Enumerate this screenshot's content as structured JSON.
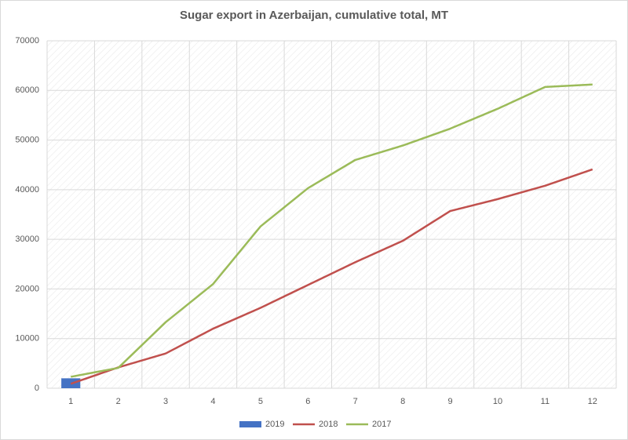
{
  "chart_data": {
    "type": "line",
    "title": "Sugar export in Azerbaijan, cumulative total, MT",
    "categories": [
      "1",
      "2",
      "3",
      "4",
      "5",
      "6",
      "7",
      "8",
      "9",
      "10",
      "11",
      "12"
    ],
    "series": [
      {
        "name": "2019",
        "type": "bar",
        "color": "#4472c4",
        "values": [
          2000,
          null,
          null,
          null,
          null,
          null,
          null,
          null,
          null,
          null,
          null,
          null
        ]
      },
      {
        "name": "2018",
        "type": "line",
        "color": "#c0504d",
        "values": [
          900,
          4200,
          7000,
          12000,
          16200,
          20800,
          25400,
          29700,
          35700,
          38100,
          40800,
          44100
        ]
      },
      {
        "name": "2017",
        "type": "line",
        "color": "#9bbb59",
        "values": [
          2300,
          4100,
          13300,
          21000,
          32600,
          40300,
          46000,
          48900,
          52300,
          56300,
          60700,
          61200
        ]
      }
    ],
    "ylim": [
      0,
      70000
    ],
    "yticks": [
      0,
      10000,
      20000,
      30000,
      40000,
      50000,
      60000,
      70000
    ],
    "grid": true,
    "legend": "bottom"
  }
}
